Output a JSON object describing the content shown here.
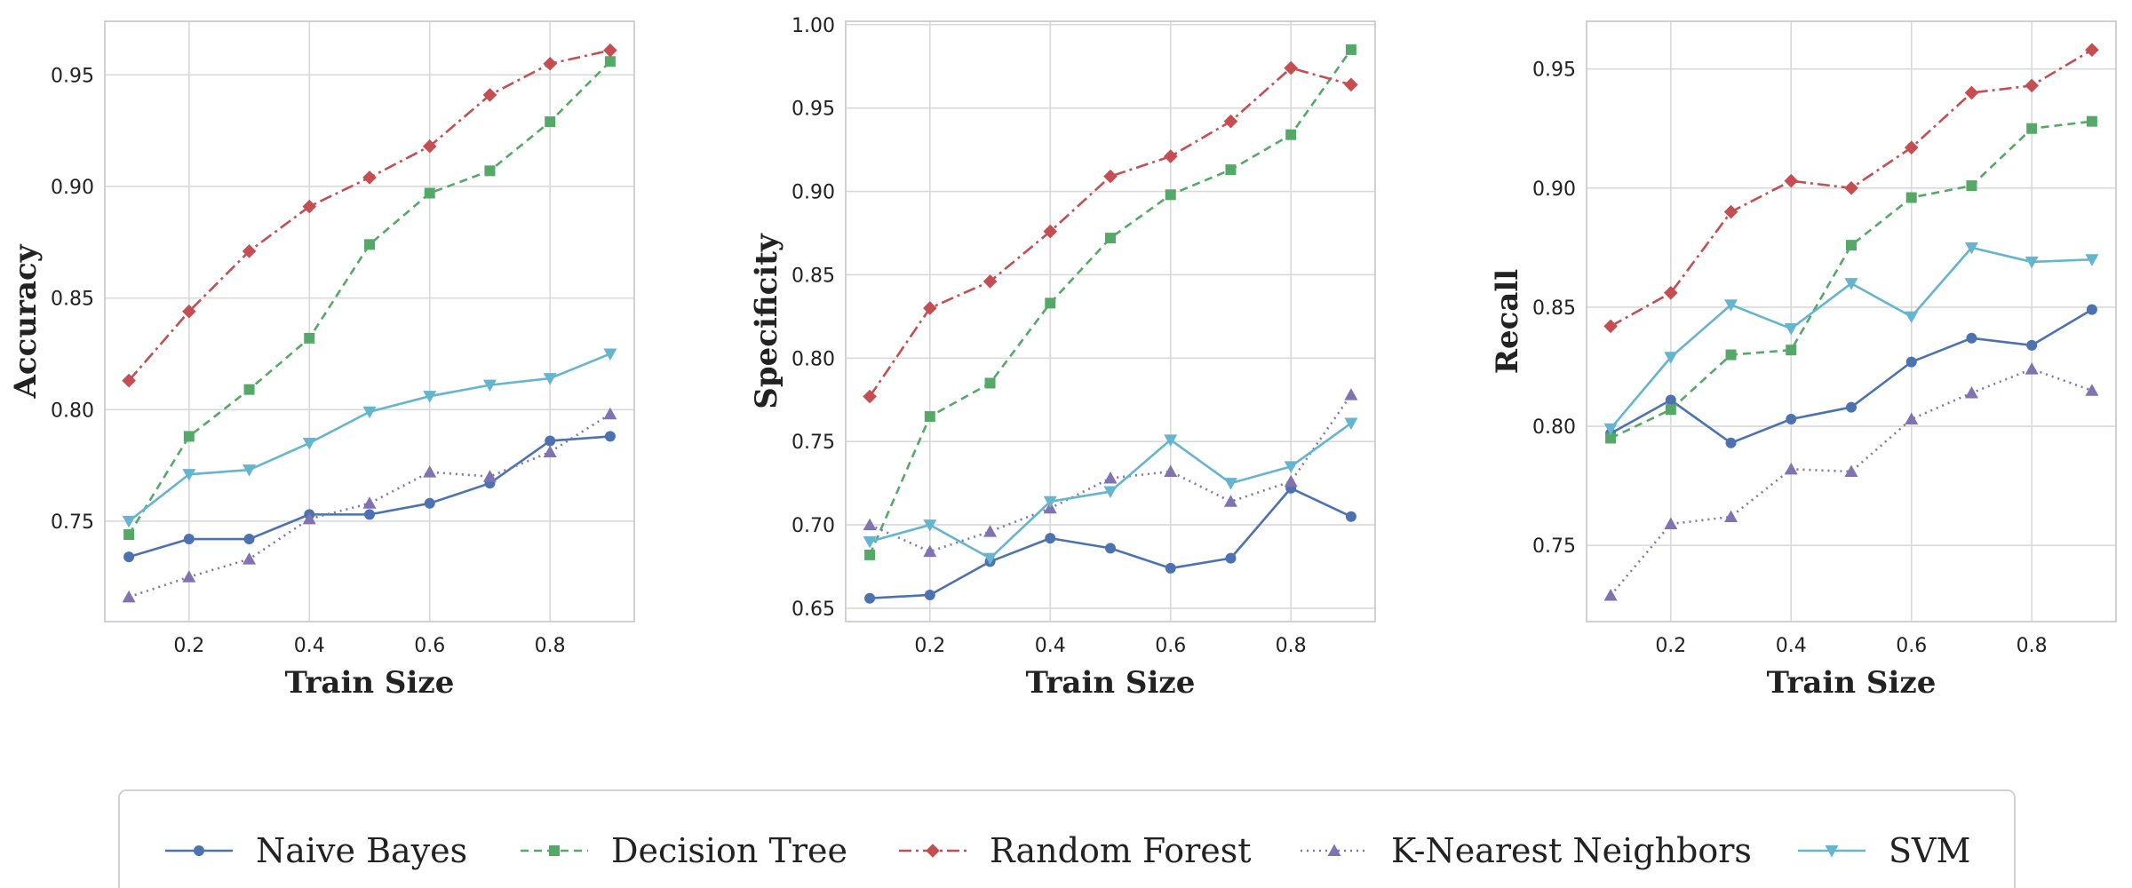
{
  "chart_data": [
    {
      "type": "line",
      "title": "",
      "xlabel": "Train Size",
      "ylabel": "Accuracy",
      "x": [
        0.1,
        0.2,
        0.3,
        0.4,
        0.5,
        0.6,
        0.7,
        0.8,
        0.9
      ],
      "xlim": [
        0.06,
        0.94
      ],
      "ylim": [
        0.705,
        0.974
      ],
      "xticks": [
        0.2,
        0.4,
        0.6,
        0.8
      ],
      "xtick_labels": [
        "0.2",
        "0.4",
        "0.6",
        "0.8"
      ],
      "yticks": [
        0.75,
        0.8,
        0.85,
        0.9,
        0.95
      ],
      "ytick_labels": [
        "0.75",
        "0.80",
        "0.85",
        "0.90",
        "0.95"
      ],
      "grid": true,
      "series": [
        {
          "name": "Naive Bayes",
          "values": [
            0.734,
            0.742,
            0.742,
            0.753,
            0.753,
            0.758,
            0.767,
            0.786,
            0.788
          ]
        },
        {
          "name": "Decision Tree",
          "values": [
            0.744,
            0.788,
            0.809,
            0.832,
            0.874,
            0.897,
            0.907,
            0.929,
            0.956
          ]
        },
        {
          "name": "Random Forest",
          "values": [
            0.813,
            0.844,
            0.871,
            0.891,
            0.904,
            0.918,
            0.941,
            0.955,
            0.961
          ]
        },
        {
          "name": "K-Nearest Neighbors",
          "values": [
            0.716,
            0.725,
            0.733,
            0.751,
            0.758,
            0.772,
            0.77,
            0.781,
            0.798
          ]
        },
        {
          "name": "SVM",
          "values": [
            0.75,
            0.771,
            0.773,
            0.785,
            0.799,
            0.806,
            0.811,
            0.814,
            0.825
          ]
        }
      ]
    },
    {
      "type": "line",
      "title": "",
      "xlabel": "Train Size",
      "ylabel": "Specificity",
      "x": [
        0.1,
        0.2,
        0.3,
        0.4,
        0.5,
        0.6,
        0.7,
        0.8,
        0.9
      ],
      "xlim": [
        0.06,
        0.94
      ],
      "ylim": [
        0.642,
        1.002
      ],
      "xticks": [
        0.2,
        0.4,
        0.6,
        0.8
      ],
      "xtick_labels": [
        "0.2",
        "0.4",
        "0.6",
        "0.8"
      ],
      "yticks": [
        0.65,
        0.7,
        0.75,
        0.8,
        0.85,
        0.9,
        0.95,
        1.0
      ],
      "ytick_labels": [
        "0.65",
        "0.70",
        "0.75",
        "0.80",
        "0.85",
        "0.90",
        "0.95",
        "1.00"
      ],
      "grid": true,
      "series": [
        {
          "name": "Naive Bayes",
          "values": [
            0.656,
            0.658,
            0.678,
            0.692,
            0.686,
            0.674,
            0.68,
            0.722,
            0.705
          ]
        },
        {
          "name": "Decision Tree",
          "values": [
            0.682,
            0.765,
            0.785,
            0.833,
            0.872,
            0.898,
            0.913,
            0.934,
            0.985
          ]
        },
        {
          "name": "Random Forest",
          "values": [
            0.777,
            0.83,
            0.846,
            0.876,
            0.909,
            0.921,
            0.942,
            0.974,
            0.964
          ]
        },
        {
          "name": "K-Nearest Neighbors",
          "values": [
            0.7,
            0.684,
            0.696,
            0.71,
            0.728,
            0.732,
            0.714,
            0.726,
            0.778
          ]
        },
        {
          "name": "SVM",
          "values": [
            0.69,
            0.7,
            0.68,
            0.714,
            0.72,
            0.751,
            0.725,
            0.735,
            0.761
          ]
        }
      ]
    },
    {
      "type": "line",
      "title": "",
      "xlabel": "Train Size",
      "ylabel": "Recall",
      "x": [
        0.1,
        0.2,
        0.3,
        0.4,
        0.5,
        0.6,
        0.7,
        0.8,
        0.9
      ],
      "xlim": [
        0.06,
        0.94
      ],
      "ylim": [
        0.718,
        0.97
      ],
      "xticks": [
        0.2,
        0.4,
        0.6,
        0.8
      ],
      "xtick_labels": [
        "0.2",
        "0.4",
        "0.6",
        "0.8"
      ],
      "yticks": [
        0.75,
        0.8,
        0.85,
        0.9,
        0.95
      ],
      "ytick_labels": [
        "0.75",
        "0.80",
        "0.85",
        "0.90",
        "0.95"
      ],
      "grid": true,
      "series": [
        {
          "name": "Naive Bayes",
          "values": [
            0.797,
            0.811,
            0.793,
            0.803,
            0.808,
            0.827,
            0.837,
            0.834,
            0.849
          ]
        },
        {
          "name": "Decision Tree",
          "values": [
            0.795,
            0.807,
            0.83,
            0.832,
            0.876,
            0.896,
            0.901,
            0.925,
            0.928
          ]
        },
        {
          "name": "Random Forest",
          "values": [
            0.842,
            0.856,
            0.89,
            0.903,
            0.9,
            0.917,
            0.94,
            0.943,
            0.958
          ]
        },
        {
          "name": "K-Nearest Neighbors",
          "values": [
            0.729,
            0.759,
            0.762,
            0.782,
            0.781,
            0.803,
            0.814,
            0.824,
            0.815
          ]
        },
        {
          "name": "SVM",
          "values": [
            0.799,
            0.829,
            0.851,
            0.841,
            0.86,
            0.846,
            0.875,
            0.869,
            0.87
          ]
        }
      ]
    }
  ],
  "styles": [
    {
      "name": "Naive Bayes",
      "color": "#4c72b0",
      "dash": "none",
      "marker": "circle"
    },
    {
      "name": "Decision Tree",
      "color": "#55a868",
      "dash": "9,6",
      "marker": "square"
    },
    {
      "name": "Random Forest",
      "color": "#c44e52",
      "dash": "14,5,3,5",
      "marker": "diamond"
    },
    {
      "name": "K-Nearest Neighbors",
      "color": "#8172b2",
      "dash": "2,5",
      "marker": "triangle-up"
    },
    {
      "name": "SVM",
      "color": "#64b5cd",
      "dash": "none",
      "marker": "triangle-down"
    }
  ],
  "legend": {
    "placement": "bottom-center",
    "items": [
      "Naive Bayes",
      "Decision Tree",
      "Random Forest",
      "K-Nearest Neighbors",
      "SVM"
    ]
  }
}
